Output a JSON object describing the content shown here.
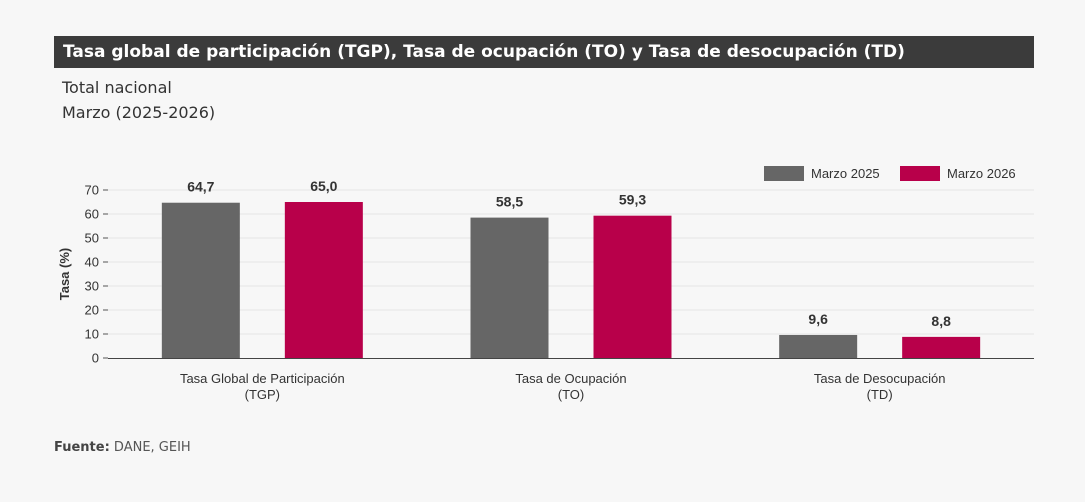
{
  "header": {
    "title": "Tasa global de participación (TGP), Tasa de ocupación (TO) y Tasa de desocupación (TD)",
    "subtitle_line1": "Total nacional",
    "subtitle_line2": "Marzo (2025-2026)"
  },
  "footer": {
    "source_label": "Fuente:",
    "source_text": " DANE, GEIH"
  },
  "colors": {
    "series1": "#666666",
    "series2": "#b8004a",
    "title_bg": "#3b3b3b"
  },
  "chart_data": {
    "type": "bar",
    "title": "Tasa global de participación (TGP), Tasa de ocupación (TO) y Tasa de desocupación (TD)",
    "categories": [
      [
        "Tasa Global de Participación",
        "(TGP)"
      ],
      [
        "Tasa de Ocupación",
        "(TO)"
      ],
      [
        "Tasa de Desocupación",
        "(TD)"
      ]
    ],
    "series": [
      {
        "name": "Marzo  2025",
        "values": [
          64.7,
          58.5,
          9.6
        ],
        "labels": [
          "64,7",
          "58,5",
          "9,6"
        ]
      },
      {
        "name": "Marzo  2026",
        "values": [
          65.0,
          59.3,
          8.8
        ],
        "labels": [
          "65,0",
          "59,3",
          "8,8"
        ]
      }
    ],
    "ylabel": "Tasa (%)",
    "xlabel": "",
    "ylim": [
      0,
      70
    ],
    "yticks": [
      0,
      10,
      20,
      30,
      40,
      50,
      60,
      70
    ],
    "grid": true,
    "legend_position": "top-right"
  }
}
